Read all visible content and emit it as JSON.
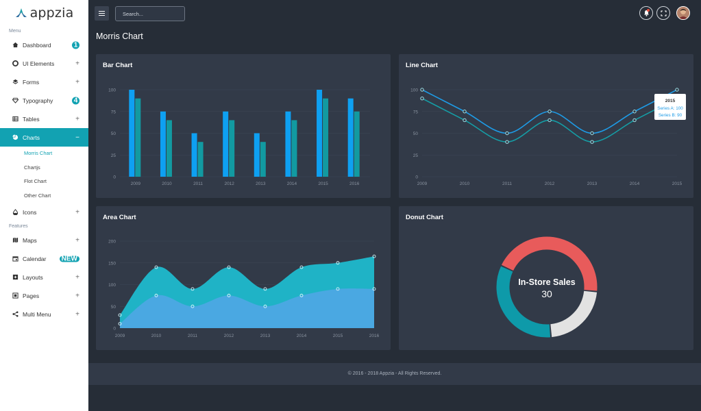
{
  "brand": {
    "name": "appzia"
  },
  "sidebar": {
    "section_menu": "Menu",
    "section_features": "Features",
    "items": [
      {
        "label": "Dashboard",
        "icon": "home-icon",
        "badge": "1"
      },
      {
        "label": "UI Elements",
        "icon": "circle-icon",
        "toggle": "+"
      },
      {
        "label": "Forms",
        "icon": "layers-icon",
        "toggle": "+"
      },
      {
        "label": "Typography",
        "icon": "diamond-icon",
        "badge": "4"
      },
      {
        "label": "Tables",
        "icon": "table-icon",
        "toggle": "+"
      },
      {
        "label": "Charts",
        "icon": "pie-chart-icon",
        "toggle": "−"
      }
    ],
    "chart_subitems": [
      "Morris Chart",
      "Chartjs",
      "Flot Chart",
      "Other Chart"
    ],
    "items2": [
      {
        "label": "Icons",
        "icon": "droplet-icon",
        "toggle": "+"
      }
    ],
    "feature_items": [
      {
        "label": "Maps",
        "icon": "map-icon",
        "toggle": "+"
      },
      {
        "label": "Calendar",
        "icon": "calendar-icon",
        "badge": "NEW"
      },
      {
        "label": "Layouts",
        "icon": "layout-icon",
        "toggle": "+"
      },
      {
        "label": "Pages",
        "icon": "pages-icon",
        "toggle": "+"
      },
      {
        "label": "Multi Menu",
        "icon": "share-icon",
        "toggle": "+"
      }
    ]
  },
  "topbar": {
    "search_placeholder": "Search..."
  },
  "page": {
    "title": "Morris Chart"
  },
  "colors": {
    "accent": "#12a2b2",
    "blue": "#0ea0f2",
    "teal": "#129aa1",
    "card": "#323a48",
    "bg": "#262d37"
  },
  "chart_data": [
    {
      "type": "bar",
      "title": "Bar Chart",
      "categories": [
        "2009",
        "2010",
        "2011",
        "2012",
        "2013",
        "2014",
        "2015",
        "2016"
      ],
      "series": [
        {
          "values": [
            100,
            75,
            50,
            75,
            50,
            75,
            100,
            90
          ],
          "color": "#0ea0f2"
        },
        {
          "values": [
            90,
            65,
            40,
            65,
            40,
            65,
            90,
            75
          ],
          "color": "#129aa1"
        }
      ],
      "ylim": [
        0,
        100
      ],
      "yticks": [
        0,
        25,
        50,
        75,
        100
      ]
    },
    {
      "type": "line",
      "title": "Line Chart",
      "categories": [
        "2009",
        "2010",
        "2011",
        "2012",
        "2013",
        "2014",
        "2015"
      ],
      "series": [
        {
          "name": "Series A",
          "values": [
            100,
            75,
            50,
            75,
            50,
            75,
            100
          ],
          "color": "#1e9be6"
        },
        {
          "name": "Series B",
          "values": [
            90,
            65,
            40,
            65,
            40,
            65,
            90
          ],
          "color": "#159ea6"
        }
      ],
      "ylim": [
        0,
        100
      ],
      "yticks": [
        0,
        25,
        50,
        75,
        100
      ],
      "tooltip": {
        "label": "2015",
        "lines": [
          "Series A: 100",
          "Series B: 90"
        ]
      }
    },
    {
      "type": "area",
      "title": "Area Chart",
      "categories": [
        "2009",
        "2010",
        "2011",
        "2012",
        "2013",
        "2014",
        "2015",
        "2016"
      ],
      "series": [
        {
          "values": [
            10,
            75,
            50,
            75,
            50,
            75,
            90,
            90
          ],
          "color": "#4aa8e2"
        },
        {
          "values": [
            30,
            140,
            90,
            140,
            90,
            140,
            150,
            165
          ],
          "color": "#1fb3c6"
        }
      ],
      "ylim": [
        0,
        200
      ],
      "yticks": [
        0,
        50,
        100,
        150,
        200
      ]
    },
    {
      "type": "pie",
      "title": "Donut Chart",
      "center_label": "In-Store Sales",
      "center_value": "30",
      "slices": [
        {
          "value": 40,
          "color": "#e85b5b"
        },
        {
          "value": 20,
          "color": "#e2e2e2"
        },
        {
          "value": 30,
          "color": "#0e9aa9"
        }
      ]
    }
  ],
  "footer": {
    "text": "© 2016 - 2018 Appzia - All Rights Reserved."
  }
}
